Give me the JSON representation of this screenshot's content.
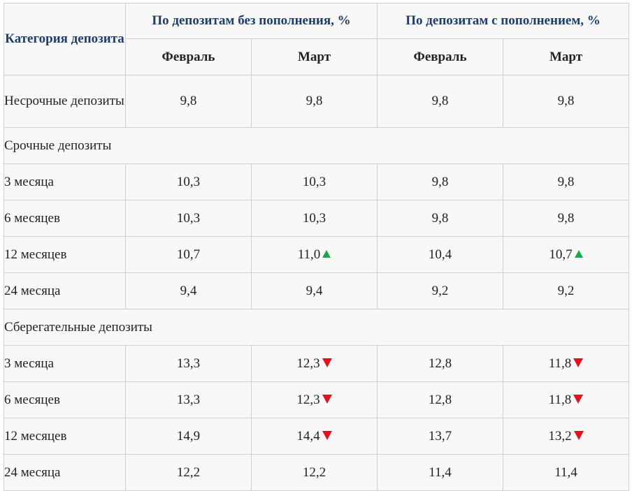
{
  "header": {
    "category": "Категория депозита",
    "group_no_topup": "По депозитам без пополнения, %",
    "group_topup": "По депозитам с пополнением, %",
    "months": [
      "Февраль",
      "Март",
      "Февраль",
      "Март"
    ]
  },
  "rows": [
    {
      "label": "Несрочные депозиты",
      "v": [
        "9,8",
        "9,8",
        "9,8",
        "9,8"
      ],
      "trend": [
        null,
        null,
        null,
        null
      ]
    },
    {
      "section": "Срочные депозиты"
    },
    {
      "label": "3 месяца",
      "v": [
        "10,3",
        "10,3",
        "9,8",
        "9,8"
      ],
      "trend": [
        null,
        null,
        null,
        null
      ]
    },
    {
      "label": "6 месяцев",
      "v": [
        "10,3",
        "10,3",
        "9,8",
        "9,8"
      ],
      "trend": [
        null,
        null,
        null,
        null
      ]
    },
    {
      "label": "12 месяцев",
      "v": [
        "10,7",
        "11,0",
        "10,4",
        "10,7"
      ],
      "trend": [
        null,
        "up",
        null,
        "up"
      ]
    },
    {
      "label": "24 месяца",
      "v": [
        "9,4",
        "9,4",
        "9,2",
        "9,2"
      ],
      "trend": [
        null,
        null,
        null,
        null
      ]
    },
    {
      "section": "Сберегательные депозиты"
    },
    {
      "label": "3 месяца",
      "v": [
        "13,3",
        "12,3",
        "12,8",
        "11,8"
      ],
      "trend": [
        null,
        "down",
        null,
        "down"
      ]
    },
    {
      "label": "6 месяцев",
      "v": [
        "13,3",
        "12,3",
        "12,8",
        "11,8"
      ],
      "trend": [
        null,
        "down",
        null,
        "down"
      ]
    },
    {
      "label": "12 месяцев",
      "v": [
        "14,9",
        "14,4",
        "13,7",
        "13,2"
      ],
      "trend": [
        null,
        "down",
        null,
        "down"
      ]
    },
    {
      "label": "24 месяца",
      "v": [
        "12,2",
        "12,2",
        "11,4",
        "11,4"
      ],
      "trend": [
        null,
        null,
        null,
        null
      ]
    }
  ],
  "colors": {
    "header_text": "#1f3d6b",
    "up_arrow": "#1aa84a",
    "down_arrow": "#e0141e",
    "border": "#d0d0d0",
    "background": "#f8f8f8"
  },
  "icons": {
    "up": "triangle-up-icon",
    "down": "triangle-down-icon"
  }
}
